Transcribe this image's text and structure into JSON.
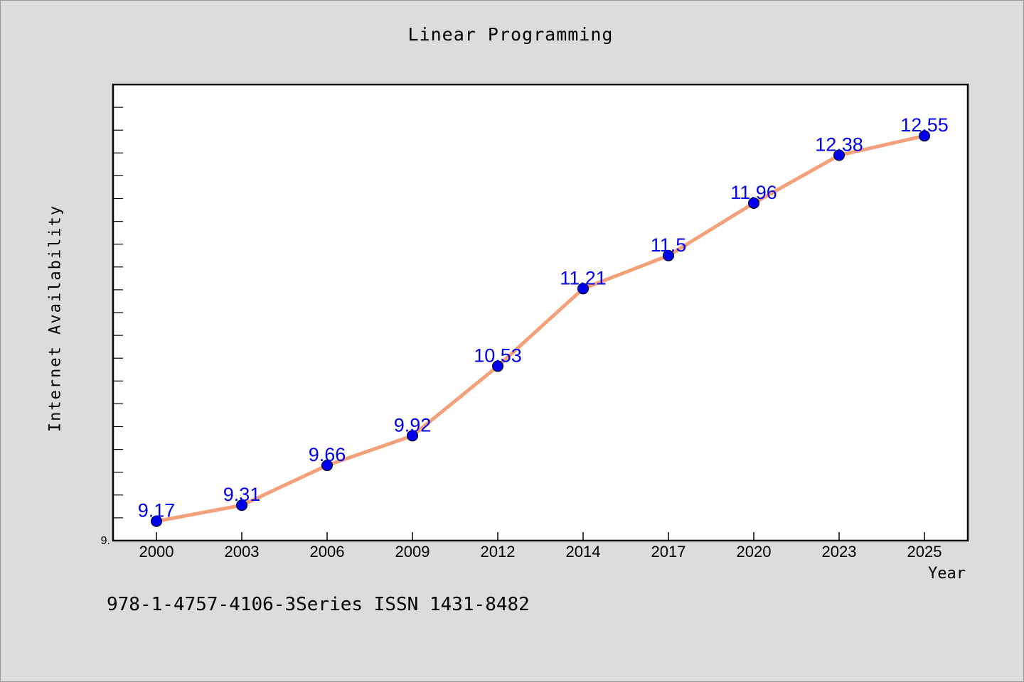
{
  "chart_data": {
    "type": "line",
    "title": "Linear Programming",
    "xlabel": "Year",
    "ylabel": "Internet Availability",
    "categories": [
      "2000",
      "2003",
      "2006",
      "2009",
      "2012",
      "2014",
      "2017",
      "2020",
      "2023",
      "2025"
    ],
    "series": [
      {
        "values": [
          9.17,
          9.31,
          9.66,
          9.92,
          10.53,
          11.21,
          11.5,
          11.96,
          12.38,
          12.55
        ]
      }
    ],
    "data_labels": [
      "9.17",
      "9.31",
      "9.66",
      "9.92",
      "10.53",
      "11.21",
      "11.5",
      "11.96",
      "12.38",
      "12.55"
    ],
    "y_tick_label": "9.",
    "ylim": [
      9.0,
      13.0
    ],
    "grid": false,
    "line_color": "#f4a07a",
    "marker_color": "#0000ee",
    "label_color": "#0000ee"
  },
  "footnote": "978-1-4757-4106-3Series ISSN 1431-8482"
}
